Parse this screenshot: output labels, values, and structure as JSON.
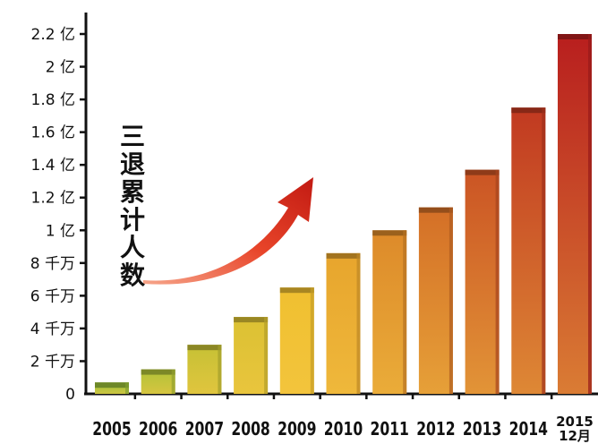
{
  "chart_data": {
    "type": "bar",
    "categories": [
      "2005",
      "2006",
      "2007",
      "2008",
      "2009",
      "2010",
      "2011",
      "2012",
      "2013",
      "2014",
      "2015\n12月"
    ],
    "values": [
      0.07,
      0.15,
      0.3,
      0.47,
      0.65,
      0.86,
      1.0,
      1.14,
      1.37,
      1.75,
      2.2
    ],
    "ylim": [
      0,
      2.2
    ],
    "yticks": [
      0,
      0.2,
      0.4,
      0.6,
      0.8,
      1.0,
      1.2,
      1.4,
      1.6,
      1.8,
      2.0,
      2.2
    ],
    "ytick_labels": [
      "0",
      "2 千万",
      "4 千万",
      "6 千万",
      "8 千万",
      "1 亿",
      "1.2 亿",
      "1.4 亿",
      "1.6 亿",
      "1.8 亿",
      "2 亿",
      "2.2 亿"
    ],
    "annotation": "三退累计人数",
    "title": "",
    "xlabel": "",
    "ylabel": "",
    "grid": false,
    "colors": {
      "low": "#9cc23a",
      "mid": "#f0c030",
      "high": "#b81e1e",
      "arrow": "#e0301e"
    }
  }
}
